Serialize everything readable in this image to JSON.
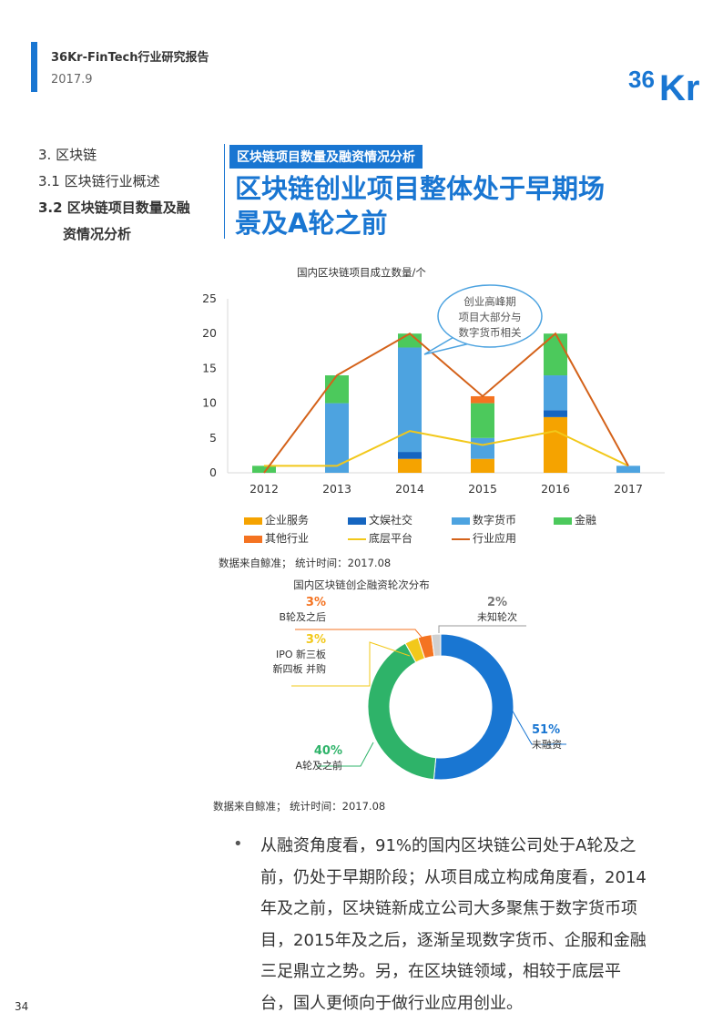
{
  "header": {
    "title": "36Kr-FinTech行业研究报告",
    "date": "2017.9",
    "logo_text": "36Kr"
  },
  "toc": {
    "items": [
      "3. 区块链",
      "3.1  区块链行业概述",
      "3.2  区块链项目数量及融",
      "资情况分析"
    ]
  },
  "section": {
    "label": "区块链项目数量及融资情况分析",
    "title_line1": "区块链创业项目整体处于早期场",
    "title_line2": "景及A轮之前"
  },
  "chart_data": [
    {
      "type": "bar",
      "stacked": true,
      "title": "国内区块链项目成立数量/个",
      "categories": [
        "2012",
        "2013",
        "2014",
        "2015",
        "2016",
        "2017"
      ],
      "ylim": [
        0,
        25
      ],
      "yticks": [
        "0",
        "5",
        "10",
        "15",
        "20",
        "25"
      ],
      "series": [
        {
          "name": "企业服务",
          "color": "#f5a300",
          "values": [
            0,
            0,
            2,
            2,
            8,
            0
          ]
        },
        {
          "name": "文娱社交",
          "color": "#1565c0",
          "values": [
            0,
            0,
            1,
            0,
            1,
            0
          ]
        },
        {
          "name": "数字货币",
          "color": "#4da3e0",
          "values": [
            0,
            10,
            15,
            3,
            5,
            1
          ]
        },
        {
          "name": "金融",
          "color": "#4cc95c",
          "values": [
            1,
            4,
            2,
            5,
            6,
            0
          ]
        },
        {
          "name": "其他行业",
          "color": "#f47321",
          "values": [
            0,
            0,
            0,
            1,
            0,
            0
          ]
        }
      ],
      "lines": [
        {
          "name": "底层平台",
          "color": "#f2c81a",
          "values": [
            1,
            1,
            6,
            4,
            6,
            1
          ]
        },
        {
          "name": "行业应用",
          "color": "#d4621a",
          "values": [
            0,
            14,
            20,
            11,
            20,
            1
          ]
        }
      ],
      "annotation": [
        "创业高峰期",
        "项目大部分与",
        "数字货币相关"
      ],
      "source": "数据来自鲸准；  统计时间：2017.08"
    },
    {
      "type": "pie",
      "donut": true,
      "title": "国内区块链创企融资轮次分布",
      "slices": [
        {
          "label": "未融资",
          "pct": "51%",
          "value": 51,
          "color": "#1976d2"
        },
        {
          "label": "A轮及之前",
          "pct": "40%",
          "value": 40,
          "color": "#2eb369"
        },
        {
          "label": "IPO 新三板 新四板 并购",
          "label_lines": [
            "IPO 新三板",
            "新四板 并购"
          ],
          "pct": "3%",
          "value": 3,
          "color": "#f2c81a"
        },
        {
          "label": "B轮及之后",
          "pct": "3%",
          "value": 3,
          "color": "#f47321"
        },
        {
          "label": "未知轮次",
          "pct": "2%",
          "value": 2,
          "color": "#d0d0d0"
        }
      ],
      "source": "数据来自鲸准；  统计时间：2017.08"
    }
  ],
  "body": {
    "bullet": "•",
    "text": "从融资角度看，91%的国内区块链公司处于A轮及之前，仍处于早期阶段；从项目成立构成角度看，2014年及之前，区块链新成立公司大多聚焦于数字货币项目，2015年及之后，逐渐呈现数字货币、企服和金融三足鼎立之势。另，在区块链领域，相较于底层平台，国人更倾向于做行业应用创业。"
  },
  "page_number": "34"
}
